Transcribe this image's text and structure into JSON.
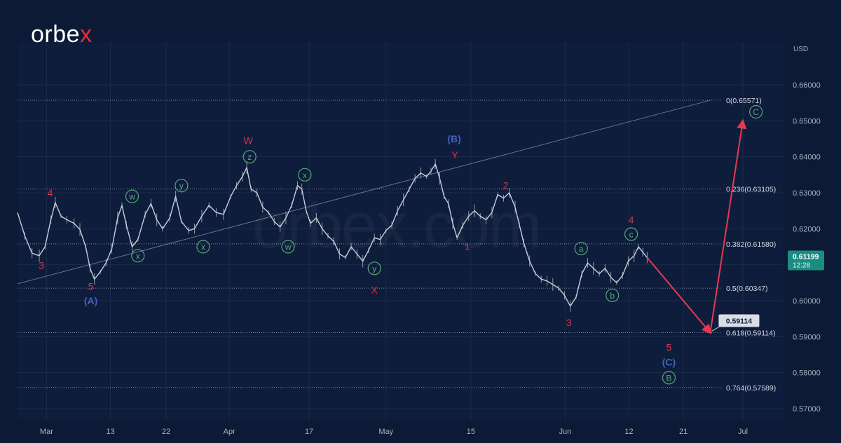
{
  "brand": {
    "logo": "orbex",
    "logo_x": "x"
  },
  "watermark": "orbex.com",
  "colors": {
    "background": "#0c1a36",
    "panel": "#0e1d3b",
    "grid": "#1c2b4a",
    "price": "#c9ced8",
    "red_label": "#e0304a",
    "blue_label": "#3f63c4",
    "green_label": "#57a77b",
    "arrow": "#e8384f",
    "fib_line": "#8c95a8",
    "current_price_bg": "#1a8d83"
  },
  "chart_data": {
    "type": "line",
    "currency_label": "USD",
    "ylim": [
      0.565,
      0.668
    ],
    "y_ticks": [
      "0.66000",
      "0.65000",
      "0.64000",
      "0.63000",
      "0.62000",
      "0.61000",
      "0.60000",
      "0.59000",
      "0.58000",
      "0.57000"
    ],
    "y_tick_values": [
      0.66,
      0.65,
      0.64,
      0.63,
      0.62,
      0.61,
      0.6,
      0.59,
      0.58,
      0.57
    ],
    "x_ticks": [
      "Mar",
      "13",
      "22",
      "Apr",
      "17",
      "May",
      "15",
      "Jun",
      "12",
      "21",
      "Jul"
    ],
    "current_price": {
      "value": "0.61199",
      "timer": "12:28",
      "level": 0.61199
    },
    "target_label": {
      "value": "0.59114",
      "level": 0.59114
    },
    "fib_levels": [
      {
        "label": "0(0.65571)",
        "level": 0.65571
      },
      {
        "label": "0.236(0.63105)",
        "level": 0.63105
      },
      {
        "label": "0.382(0.61580)",
        "level": 0.6158
      },
      {
        "label": "0.5(0.60347)",
        "level": 0.60347
      },
      {
        "label": "0.618(0.59114)",
        "level": 0.59114
      },
      {
        "label": "0.764(0.57589)",
        "level": 0.57589
      }
    ],
    "trendline": {
      "from": [
        0,
        0.6047
      ],
      "to": [
        0.955,
        0.6557
      ]
    },
    "price_series": [
      [
        0.0,
        0.6245
      ],
      [
        0.01,
        0.618
      ],
      [
        0.02,
        0.6132
      ],
      [
        0.03,
        0.6125
      ],
      [
        0.038,
        0.615
      ],
      [
        0.046,
        0.6225
      ],
      [
        0.052,
        0.6273
      ],
      [
        0.06,
        0.6235
      ],
      [
        0.068,
        0.6225
      ],
      [
        0.078,
        0.6215
      ],
      [
        0.086,
        0.6198
      ],
      [
        0.094,
        0.615
      ],
      [
        0.1,
        0.609
      ],
      [
        0.106,
        0.606
      ],
      [
        0.114,
        0.608
      ],
      [
        0.122,
        0.6105
      ],
      [
        0.13,
        0.6145
      ],
      [
        0.138,
        0.623
      ],
      [
        0.144,
        0.6265
      ],
      [
        0.15,
        0.621
      ],
      [
        0.158,
        0.615
      ],
      [
        0.166,
        0.617
      ],
      [
        0.176,
        0.624
      ],
      [
        0.184,
        0.627
      ],
      [
        0.192,
        0.6225
      ],
      [
        0.2,
        0.62
      ],
      [
        0.21,
        0.623
      ],
      [
        0.218,
        0.629
      ],
      [
        0.226,
        0.622
      ],
      [
        0.236,
        0.6195
      ],
      [
        0.244,
        0.62
      ],
      [
        0.254,
        0.6235
      ],
      [
        0.264,
        0.6265
      ],
      [
        0.274,
        0.6245
      ],
      [
        0.284,
        0.624
      ],
      [
        0.294,
        0.629
      ],
      [
        0.302,
        0.632
      ],
      [
        0.31,
        0.6345
      ],
      [
        0.316,
        0.637
      ],
      [
        0.322,
        0.631
      ],
      [
        0.33,
        0.63
      ],
      [
        0.338,
        0.626
      ],
      [
        0.346,
        0.6245
      ],
      [
        0.354,
        0.622
      ],
      [
        0.362,
        0.6205
      ],
      [
        0.37,
        0.623
      ],
      [
        0.378,
        0.6265
      ],
      [
        0.386,
        0.632
      ],
      [
        0.392,
        0.631
      ],
      [
        0.398,
        0.625
      ],
      [
        0.404,
        0.6215
      ],
      [
        0.412,
        0.623
      ],
      [
        0.42,
        0.62
      ],
      [
        0.428,
        0.618
      ],
      [
        0.436,
        0.6165
      ],
      [
        0.444,
        0.613
      ],
      [
        0.452,
        0.612
      ],
      [
        0.46,
        0.615
      ],
      [
        0.468,
        0.613
      ],
      [
        0.476,
        0.611
      ],
      [
        0.484,
        0.614
      ],
      [
        0.492,
        0.6175
      ],
      [
        0.5,
        0.617
      ],
      [
        0.508,
        0.6195
      ],
      [
        0.516,
        0.621
      ],
      [
        0.524,
        0.625
      ],
      [
        0.532,
        0.628
      ],
      [
        0.54,
        0.631
      ],
      [
        0.548,
        0.634
      ],
      [
        0.556,
        0.6355
      ],
      [
        0.564,
        0.6345
      ],
      [
        0.57,
        0.636
      ],
      [
        0.576,
        0.638
      ],
      [
        0.582,
        0.634
      ],
      [
        0.588,
        0.629
      ],
      [
        0.594,
        0.627
      ],
      [
        0.6,
        0.6215
      ],
      [
        0.606,
        0.6175
      ],
      [
        0.614,
        0.621
      ],
      [
        0.622,
        0.6235
      ],
      [
        0.63,
        0.625
      ],
      [
        0.638,
        0.6235
      ],
      [
        0.646,
        0.6225
      ],
      [
        0.654,
        0.6245
      ],
      [
        0.662,
        0.6295
      ],
      [
        0.67,
        0.6285
      ],
      [
        0.678,
        0.63
      ],
      [
        0.686,
        0.626
      ],
      [
        0.692,
        0.621
      ],
      [
        0.698,
        0.616
      ],
      [
        0.706,
        0.611
      ],
      [
        0.714,
        0.6075
      ],
      [
        0.722,
        0.606
      ],
      [
        0.73,
        0.6055
      ],
      [
        0.738,
        0.6045
      ],
      [
        0.746,
        0.6035
      ],
      [
        0.754,
        0.6015
      ],
      [
        0.762,
        0.5985
      ],
      [
        0.77,
        0.601
      ],
      [
        0.778,
        0.6075
      ],
      [
        0.786,
        0.6105
      ],
      [
        0.794,
        0.609
      ],
      [
        0.802,
        0.6075
      ],
      [
        0.81,
        0.609
      ],
      [
        0.818,
        0.6065
      ],
      [
        0.826,
        0.605
      ],
      [
        0.834,
        0.607
      ],
      [
        0.842,
        0.611
      ],
      [
        0.85,
        0.6125
      ],
      [
        0.856,
        0.615
      ],
      [
        0.862,
        0.6135
      ],
      [
        0.868,
        0.612
      ]
    ],
    "projection": [
      [
        0.868,
        0.612
      ],
      [
        0.955,
        0.5911
      ],
      [
        1.0,
        0.65
      ]
    ],
    "wave_labels": [
      {
        "text": "4",
        "x": 0.045,
        "y": 0.63,
        "color": "red",
        "circled": false
      },
      {
        "text": "3",
        "x": 0.033,
        "y": 0.6098,
        "color": "red",
        "circled": false
      },
      {
        "text": "5",
        "x": 0.101,
        "y": 0.604,
        "color": "red",
        "circled": false
      },
      {
        "text": "(A)",
        "x": 0.101,
        "y": 0.6,
        "color": "blue",
        "circled": false
      },
      {
        "text": "w",
        "x": 0.158,
        "y": 0.629,
        "color": "green",
        "circled": true
      },
      {
        "text": "x",
        "x": 0.166,
        "y": 0.6125,
        "color": "green",
        "circled": true
      },
      {
        "text": "y",
        "x": 0.226,
        "y": 0.632,
        "color": "green",
        "circled": true
      },
      {
        "text": "x",
        "x": 0.256,
        "y": 0.615,
        "color": "green",
        "circled": true
      },
      {
        "text": "W",
        "x": 0.318,
        "y": 0.6445,
        "color": "red",
        "circled": false
      },
      {
        "text": "z",
        "x": 0.32,
        "y": 0.64,
        "color": "green",
        "circled": true
      },
      {
        "text": "x",
        "x": 0.396,
        "y": 0.635,
        "color": "green",
        "circled": true
      },
      {
        "text": "w",
        "x": 0.373,
        "y": 0.615,
        "color": "green",
        "circled": true
      },
      {
        "text": "y",
        "x": 0.492,
        "y": 0.609,
        "color": "green",
        "circled": true
      },
      {
        "text": "X",
        "x": 0.492,
        "y": 0.603,
        "color": "red",
        "circled": false
      },
      {
        "text": "(B)",
        "x": 0.602,
        "y": 0.645,
        "color": "blue",
        "circled": false
      },
      {
        "text": "Y",
        "x": 0.603,
        "y": 0.6405,
        "color": "red",
        "circled": false
      },
      {
        "text": "1",
        "x": 0.62,
        "y": 0.615,
        "color": "red",
        "circled": false
      },
      {
        "text": "2",
        "x": 0.673,
        "y": 0.632,
        "color": "red",
        "circled": false
      },
      {
        "text": "3",
        "x": 0.76,
        "y": 0.594,
        "color": "red",
        "circled": false
      },
      {
        "text": "a",
        "x": 0.777,
        "y": 0.6145,
        "color": "green",
        "circled": true
      },
      {
        "text": "b",
        "x": 0.82,
        "y": 0.6015,
        "color": "green",
        "circled": true
      },
      {
        "text": "4",
        "x": 0.846,
        "y": 0.6225,
        "color": "red",
        "circled": false
      },
      {
        "text": "c",
        "x": 0.846,
        "y": 0.6185,
        "color": "green",
        "circled": true
      },
      {
        "text": "5",
        "x": 0.898,
        "y": 0.587,
        "color": "red",
        "circled": false
      },
      {
        "text": "(C)",
        "x": 0.898,
        "y": 0.583,
        "color": "blue",
        "circled": false
      },
      {
        "text": "B",
        "x": 0.898,
        "y": 0.5786,
        "color": "green",
        "circled": true
      },
      {
        "text": "C",
        "x": 1.018,
        "y": 0.6525,
        "color": "green",
        "circled": true
      }
    ],
    "grid": true,
    "legend": "none"
  }
}
